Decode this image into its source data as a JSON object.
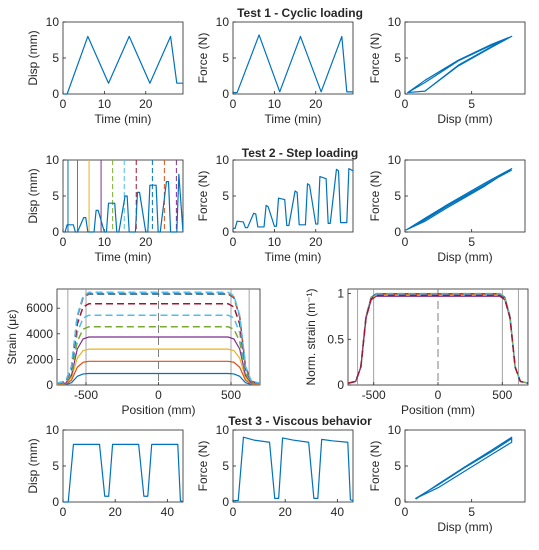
{
  "section_titles": [
    "Test 1 - Cyclic loading",
    "Test 2 - Step loading",
    "Test 3 - Viscous behavior"
  ],
  "chart_data": [
    {
      "id": "t1-disp-time",
      "type": "line",
      "xlabel": "Time (min)",
      "ylabel": "Disp (mm)",
      "xlim": [
        0,
        29
      ],
      "ylim": [
        0,
        10
      ],
      "xticks": [
        0,
        10,
        20
      ],
      "yticks": [
        0,
        5,
        10
      ],
      "series": [
        {
          "color": "#0072bd",
          "x": [
            0,
            1,
            6,
            11,
            16,
            21,
            26,
            27.5,
            29
          ],
          "y": [
            0,
            0,
            8,
            1.5,
            8,
            1.5,
            8,
            1.5,
            1.5
          ]
        }
      ]
    },
    {
      "id": "t1-force-time",
      "type": "line",
      "xlabel": "Time (min)",
      "ylabel": "Force (N)",
      "xlim": [
        0,
        29
      ],
      "ylim": [
        0,
        10
      ],
      "xticks": [
        0,
        10,
        20
      ],
      "yticks": [
        0,
        5,
        10
      ],
      "series": [
        {
          "color": "#0072bd",
          "x": [
            0,
            1,
            6.3,
            11.3,
            16.3,
            21.3,
            26.3,
            27.5,
            29
          ],
          "y": [
            0.2,
            0.2,
            8.2,
            0.3,
            8.0,
            0.3,
            8.0,
            0.3,
            0.3
          ]
        }
      ]
    },
    {
      "id": "t1-force-disp",
      "type": "line",
      "xlabel": "Disp (mm)",
      "ylabel": "Force (N)",
      "xlim": [
        0,
        9
      ],
      "ylim": [
        0,
        10
      ],
      "xticks": [
        0,
        5
      ],
      "yticks": [
        0,
        5,
        10
      ],
      "series": [
        {
          "color": "#0072bd",
          "x": [
            0.2,
            1.5,
            4,
            6.5,
            8,
            6.5,
            4,
            1.5,
            0.2,
            1.5,
            4,
            6.5,
            8,
            6.5,
            4,
            1.5
          ],
          "y": [
            0.2,
            1.6,
            4.6,
            6.8,
            8.0,
            6.5,
            3.9,
            0.4,
            0.2,
            1.9,
            4.7,
            6.9,
            8.0,
            6.6,
            4.0,
            0.4
          ]
        }
      ]
    },
    {
      "id": "t2-disp-time",
      "type": "line",
      "xlabel": "Time (min)",
      "ylabel": "Disp (mm)",
      "xlim": [
        0,
        29
      ],
      "ylim": [
        0,
        10
      ],
      "xticks": [
        0,
        10,
        20
      ],
      "yticks": [
        0,
        5,
        10
      ],
      "series": [
        {
          "color": "#0072bd",
          "x": [
            0,
            0.5,
            1.0,
            2.5,
            3,
            3.5,
            5,
            5.5,
            6,
            7.5,
            8,
            8.5,
            10,
            10.5,
            11,
            12.5,
            13,
            13.5,
            15,
            15.5,
            16,
            17.5,
            18,
            18.5,
            20,
            20.5,
            21,
            22.5,
            23,
            23.5,
            25,
            25.5,
            26,
            27.5,
            28,
            29
          ],
          "y": [
            0,
            0,
            1,
            1,
            0,
            0,
            2,
            2,
            0,
            0,
            3,
            3,
            0,
            0,
            4,
            4,
            0,
            0,
            5,
            5,
            0,
            0,
            5.5,
            5.5,
            0,
            0,
            6.5,
            6.5,
            0,
            0,
            7,
            7,
            0,
            0,
            8,
            0
          ]
        }
      ],
      "markers": [
        {
          "x": 1.2,
          "color": "#0072bd",
          "style": "solid"
        },
        {
          "x": 3.5,
          "color": "#d95319",
          "style": "solid"
        },
        {
          "x": 6.3,
          "color": "#edb120",
          "style": "solid"
        },
        {
          "x": 9.2,
          "color": "#7e2f8e",
          "style": "solid"
        },
        {
          "x": 12.0,
          "color": "#77ac30",
          "style": "dashed"
        },
        {
          "x": 14.8,
          "color": "#4dbeee",
          "style": "dashed"
        },
        {
          "x": 17.7,
          "color": "#a2142f",
          "style": "dashed"
        },
        {
          "x": 21.6,
          "color": "#0072bd",
          "style": "dashed"
        },
        {
          "x": 24.5,
          "color": "#d95319",
          "style": "dashed"
        },
        {
          "x": 27.4,
          "color": "#7e2f8e",
          "style": "dashed"
        }
      ]
    },
    {
      "id": "t2-force-time",
      "type": "line",
      "xlabel": "Time (min)",
      "ylabel": "Force (N)",
      "xlim": [
        0,
        29
      ],
      "ylim": [
        0,
        10
      ],
      "xticks": [
        0,
        10,
        20
      ],
      "yticks": [
        0,
        5,
        10
      ],
      "series": [
        {
          "color": "#0072bd",
          "x": [
            0,
            0.5,
            1,
            2.5,
            3,
            3.5,
            5,
            5.5,
            6,
            7.5,
            8,
            8.5,
            10,
            10.5,
            11,
            12.5,
            13,
            13.5,
            15,
            15.5,
            16,
            17.5,
            18,
            18.5,
            20,
            20.5,
            21,
            22.5,
            23,
            23.5,
            25,
            25.5,
            26,
            27.5,
            28,
            29
          ],
          "y": [
            0.5,
            0.5,
            1.5,
            1.4,
            0.6,
            0.6,
            2.6,
            2.5,
            0.7,
            0.7,
            3.7,
            3.5,
            0.8,
            0.8,
            4.7,
            4.5,
            0.9,
            0.9,
            5.7,
            5.5,
            1.0,
            1.0,
            6.7,
            6.5,
            1.1,
            1.1,
            7.7,
            7.4,
            1.2,
            1.2,
            8.7,
            8.5,
            1.3,
            1.3,
            8.8,
            8.5
          ]
        }
      ]
    },
    {
      "id": "t2-force-disp",
      "type": "line",
      "xlabel": "Disp (mm)",
      "ylabel": "Force (N)",
      "xlim": [
        0,
        9
      ],
      "ylim": [
        0,
        10
      ],
      "xticks": [
        0,
        5
      ],
      "yticks": [
        0,
        5,
        10
      ],
      "series": [
        {
          "color": "#0072bd",
          "x": [
            0.1,
            1.5,
            3,
            4.5,
            6,
            7,
            8,
            7,
            6,
            4.5,
            3,
            1.5,
            0.1,
            1.5,
            3,
            4.5,
            6,
            7,
            8
          ],
          "y": [
            0.3,
            1.9,
            3.6,
            5.2,
            6.8,
            7.8,
            8.8,
            7.6,
            6.4,
            4.8,
            3.2,
            1.5,
            0.3,
            1.7,
            3.4,
            5.0,
            6.6,
            7.6,
            8.6
          ]
        }
      ]
    },
    {
      "id": "strain-position",
      "type": "line",
      "xlabel": "Position (mm)",
      "ylabel": "Strain (με)",
      "xlim": [
        -700,
        700
      ],
      "ylim": [
        0,
        7500
      ],
      "xticks": [
        -500,
        0,
        500
      ],
      "yticks": [
        0,
        2000,
        4000,
        6000
      ],
      "vlines": [
        -625,
        -500,
        500,
        625
      ],
      "center_line": 0,
      "series": [
        {
          "color": "#0072bd",
          "style": "solid",
          "level": 900
        },
        {
          "color": "#d95319",
          "style": "solid",
          "level": 1850
        },
        {
          "color": "#edb120",
          "style": "solid",
          "level": 2800
        },
        {
          "color": "#7e2f8e",
          "style": "solid",
          "level": 3750
        },
        {
          "color": "#77ac30",
          "style": "dashed",
          "level": 4550
        },
        {
          "color": "#4dbeee",
          "style": "dashed",
          "level": 5450
        },
        {
          "color": "#a2142f",
          "style": "dashed",
          "level": 6350
        },
        {
          "color": "#0072bd",
          "style": "dashed",
          "level": 7100
        },
        {
          "color": "#d95319",
          "style": "dashed",
          "level": 7150
        },
        {
          "color": "#4dbeee",
          "style": "dashed",
          "level": 7250
        }
      ]
    },
    {
      "id": "norm-strain-position",
      "type": "line",
      "xlabel": "Position (mm)",
      "ylabel": "Norm. strain (m⁻¹)",
      "xlim": [
        -700,
        700
      ],
      "ylim": [
        0,
        1.05
      ],
      "xticks": [
        -500,
        0,
        500
      ],
      "yticks": [
        0,
        0.5,
        1
      ],
      "vlines": [
        -625,
        -500,
        500,
        625
      ],
      "center_line": 0,
      "series": [
        {
          "color": "#0072bd",
          "style": "solid",
          "level": 1.0
        },
        {
          "color": "#d95319",
          "style": "solid",
          "level": 0.99
        },
        {
          "color": "#edb120",
          "style": "solid",
          "level": 0.98
        },
        {
          "color": "#7e2f8e",
          "style": "solid",
          "level": 0.97
        },
        {
          "color": "#77ac30",
          "style": "dashed",
          "level": 1.0
        },
        {
          "color": "#4dbeee",
          "style": "dashed",
          "level": 0.99
        },
        {
          "color": "#a2142f",
          "style": "dashed",
          "level": 0.98
        }
      ]
    },
    {
      "id": "t3-disp-time",
      "type": "line",
      "xlabel": "",
      "ylabel": "Disp (mm)",
      "xlim": [
        0,
        46
      ],
      "ylim": [
        0,
        10
      ],
      "xticks": [
        0,
        20,
        40
      ],
      "yticks": [
        0,
        5,
        10
      ],
      "series": [
        {
          "color": "#0072bd",
          "x": [
            0,
            2,
            4,
            14,
            16,
            17.5,
            19,
            29,
            31,
            32.5,
            34,
            44,
            45,
            46
          ],
          "y": [
            0,
            0,
            8,
            8,
            0.8,
            0.8,
            8,
            8,
            0.8,
            0.8,
            8,
            8,
            0.2,
            0
          ]
        }
      ]
    },
    {
      "id": "t3-force-time",
      "type": "line",
      "xlabel": "",
      "ylabel": "Force (N)",
      "xlim": [
        0,
        46
      ],
      "ylim": [
        0,
        10
      ],
      "xticks": [
        0,
        20,
        40
      ],
      "yticks": [
        0,
        5,
        10
      ],
      "series": [
        {
          "color": "#0072bd",
          "x": [
            0,
            2,
            4,
            8,
            14,
            16,
            17.5,
            19,
            23,
            29,
            31,
            32.5,
            34,
            38,
            44,
            45,
            46
          ],
          "y": [
            0.2,
            0.2,
            9.0,
            8.6,
            8.3,
            0.5,
            0.5,
            8.9,
            8.6,
            8.3,
            0.5,
            0.5,
            8.7,
            8.5,
            8.3,
            0.3,
            0.2
          ]
        }
      ]
    },
    {
      "id": "t3-force-disp",
      "type": "line",
      "xlabel": "Disp (mm)",
      "ylabel": "Force (N)",
      "xlim": [
        0,
        9
      ],
      "ylim": [
        0,
        10
      ],
      "xticks": [
        0,
        5
      ],
      "yticks": [
        0,
        5,
        10
      ],
      "series": [
        {
          "color": "#0072bd",
          "x": [
            0.8,
            2.5,
            4.5,
            6.5,
            8,
            8,
            6.5,
            4.5,
            2.5,
            0.8,
            2.5,
            4.5,
            6.5,
            8,
            8
          ],
          "y": [
            0.4,
            2.5,
            4.9,
            7.2,
            9.0,
            8.3,
            6.6,
            4.3,
            2.0,
            0.5,
            2.4,
            4.8,
            7.0,
            8.8,
            8.3
          ]
        }
      ]
    }
  ]
}
